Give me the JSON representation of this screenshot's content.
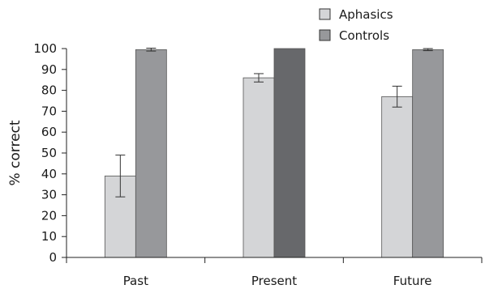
{
  "chart_data": {
    "type": "bar",
    "categories": [
      "Past",
      "Present",
      "Future"
    ],
    "series": [
      {
        "name": "Aphasics",
        "values": [
          39,
          86,
          77
        ],
        "error": [
          10,
          2,
          5
        ],
        "color": "#d4d5d7"
      },
      {
        "name": "Controls",
        "values": [
          99.5,
          100,
          99.5
        ],
        "error": [
          0.7,
          0,
          0.5
        ],
        "color_per_category": [
          "#97989b",
          "#67686b",
          "#97989b"
        ],
        "legend_color": "#97989b"
      }
    ],
    "ylabel": "% correct",
    "ylim": [
      0,
      100
    ],
    "yticks": [
      0,
      10,
      20,
      30,
      40,
      50,
      60,
      70,
      80,
      90,
      100
    ],
    "grid": false,
    "legend_position": "top-right"
  }
}
